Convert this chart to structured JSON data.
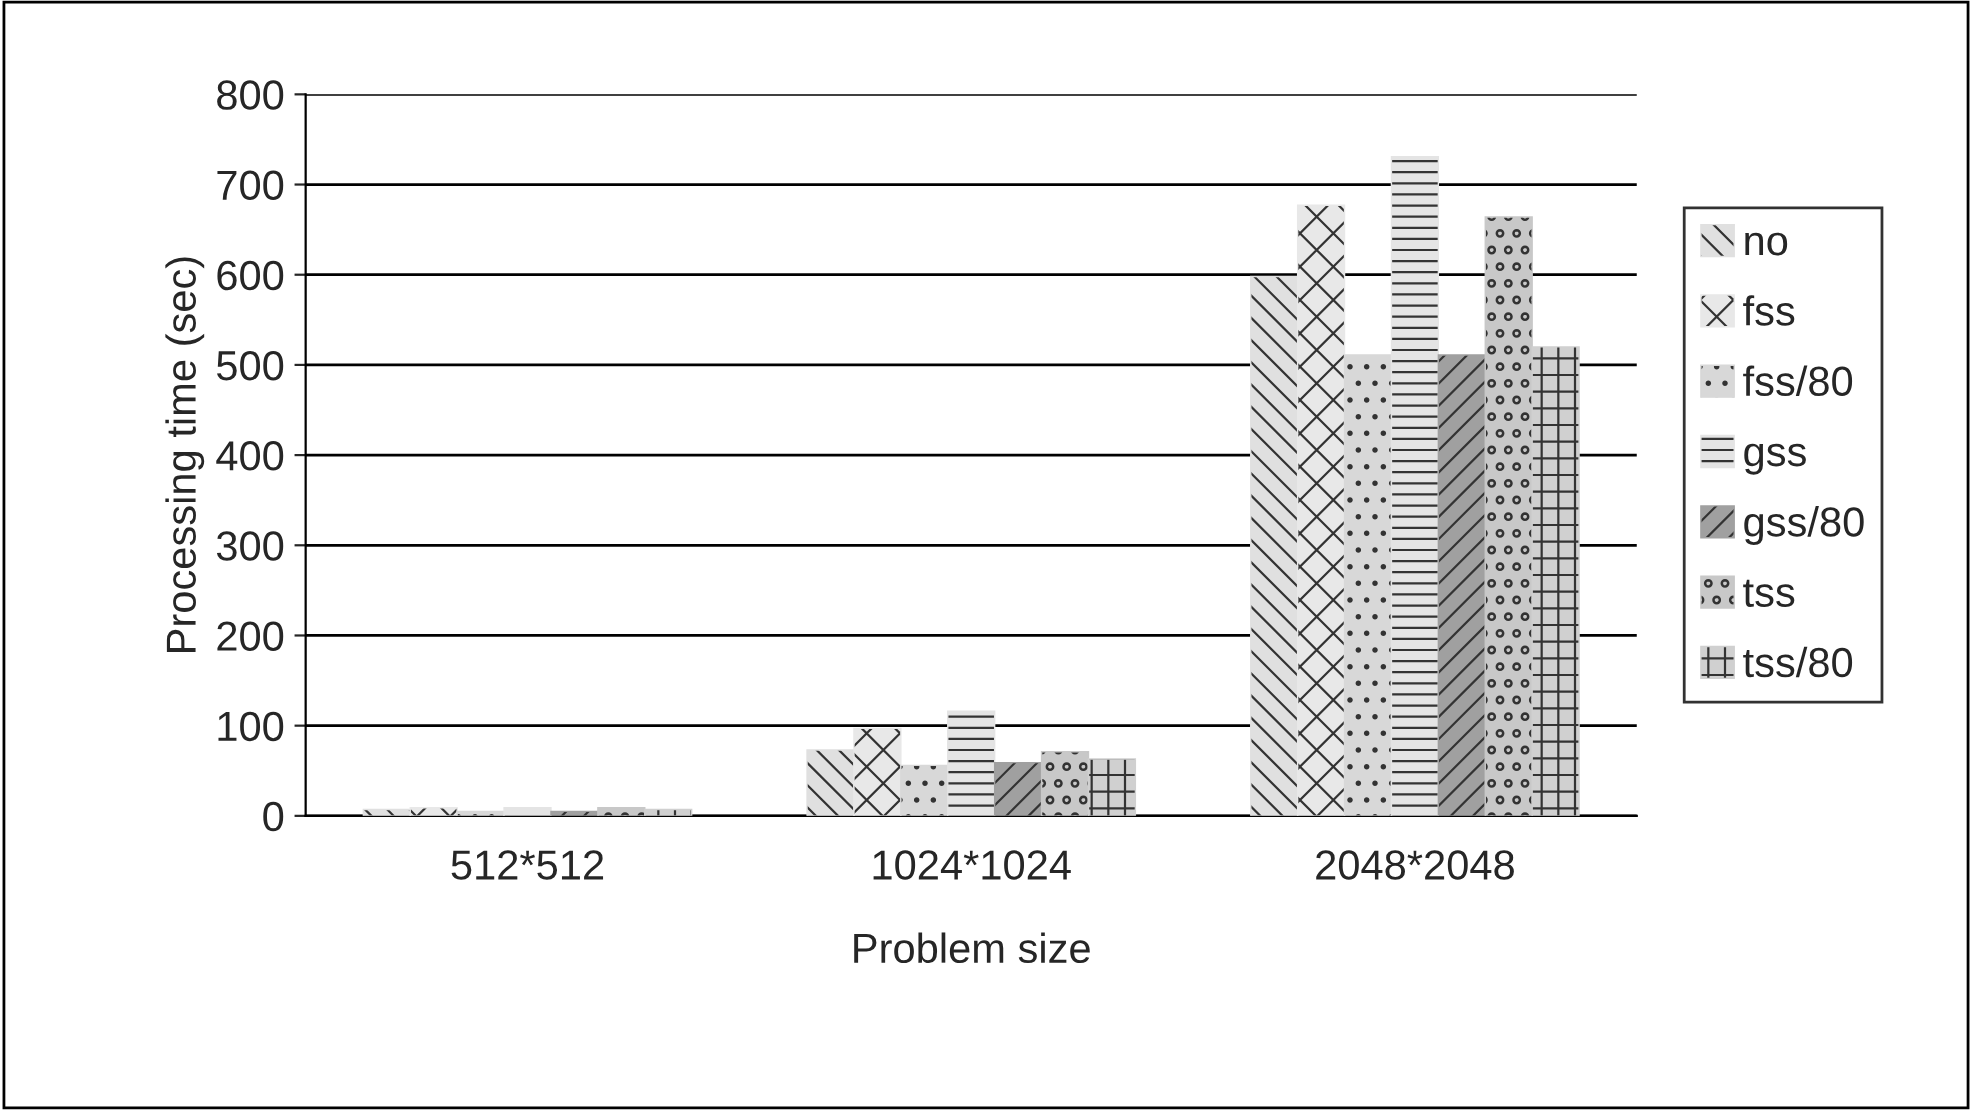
{
  "chart_data": {
    "type": "bar",
    "xlabel": "Problem size",
    "ylabel": "Processing time (sec)",
    "categories": [
      "512*512",
      "1024*1024",
      "2048*2048"
    ],
    "series": [
      {
        "name": "no",
        "color": "#e0e0e0",
        "values": [
          7,
          73,
          598
        ]
      },
      {
        "name": "fss",
        "color": "#e8e8e8",
        "values": [
          9,
          97,
          677
        ]
      },
      {
        "name": "fss/80",
        "color": "#d8d8d8",
        "values": [
          5,
          56,
          511
        ]
      },
      {
        "name": "gss",
        "color": "#e4e4e4",
        "values": [
          9,
          116,
          731
        ]
      },
      {
        "name": "gss/80",
        "color": "#a0a0a0",
        "values": [
          5,
          59,
          511
        ]
      },
      {
        "name": "tss",
        "color": "#c8c8c8",
        "values": [
          9,
          71,
          664
        ]
      },
      {
        "name": "tss/80",
        "color": "#d0d0d0",
        "values": [
          7,
          63,
          520
        ]
      }
    ],
    "ylim": [
      0,
      800
    ],
    "yticks": [
      0,
      100,
      200,
      300,
      400,
      500,
      600,
      700,
      800
    ],
    "grid": "y",
    "legend": "right"
  }
}
